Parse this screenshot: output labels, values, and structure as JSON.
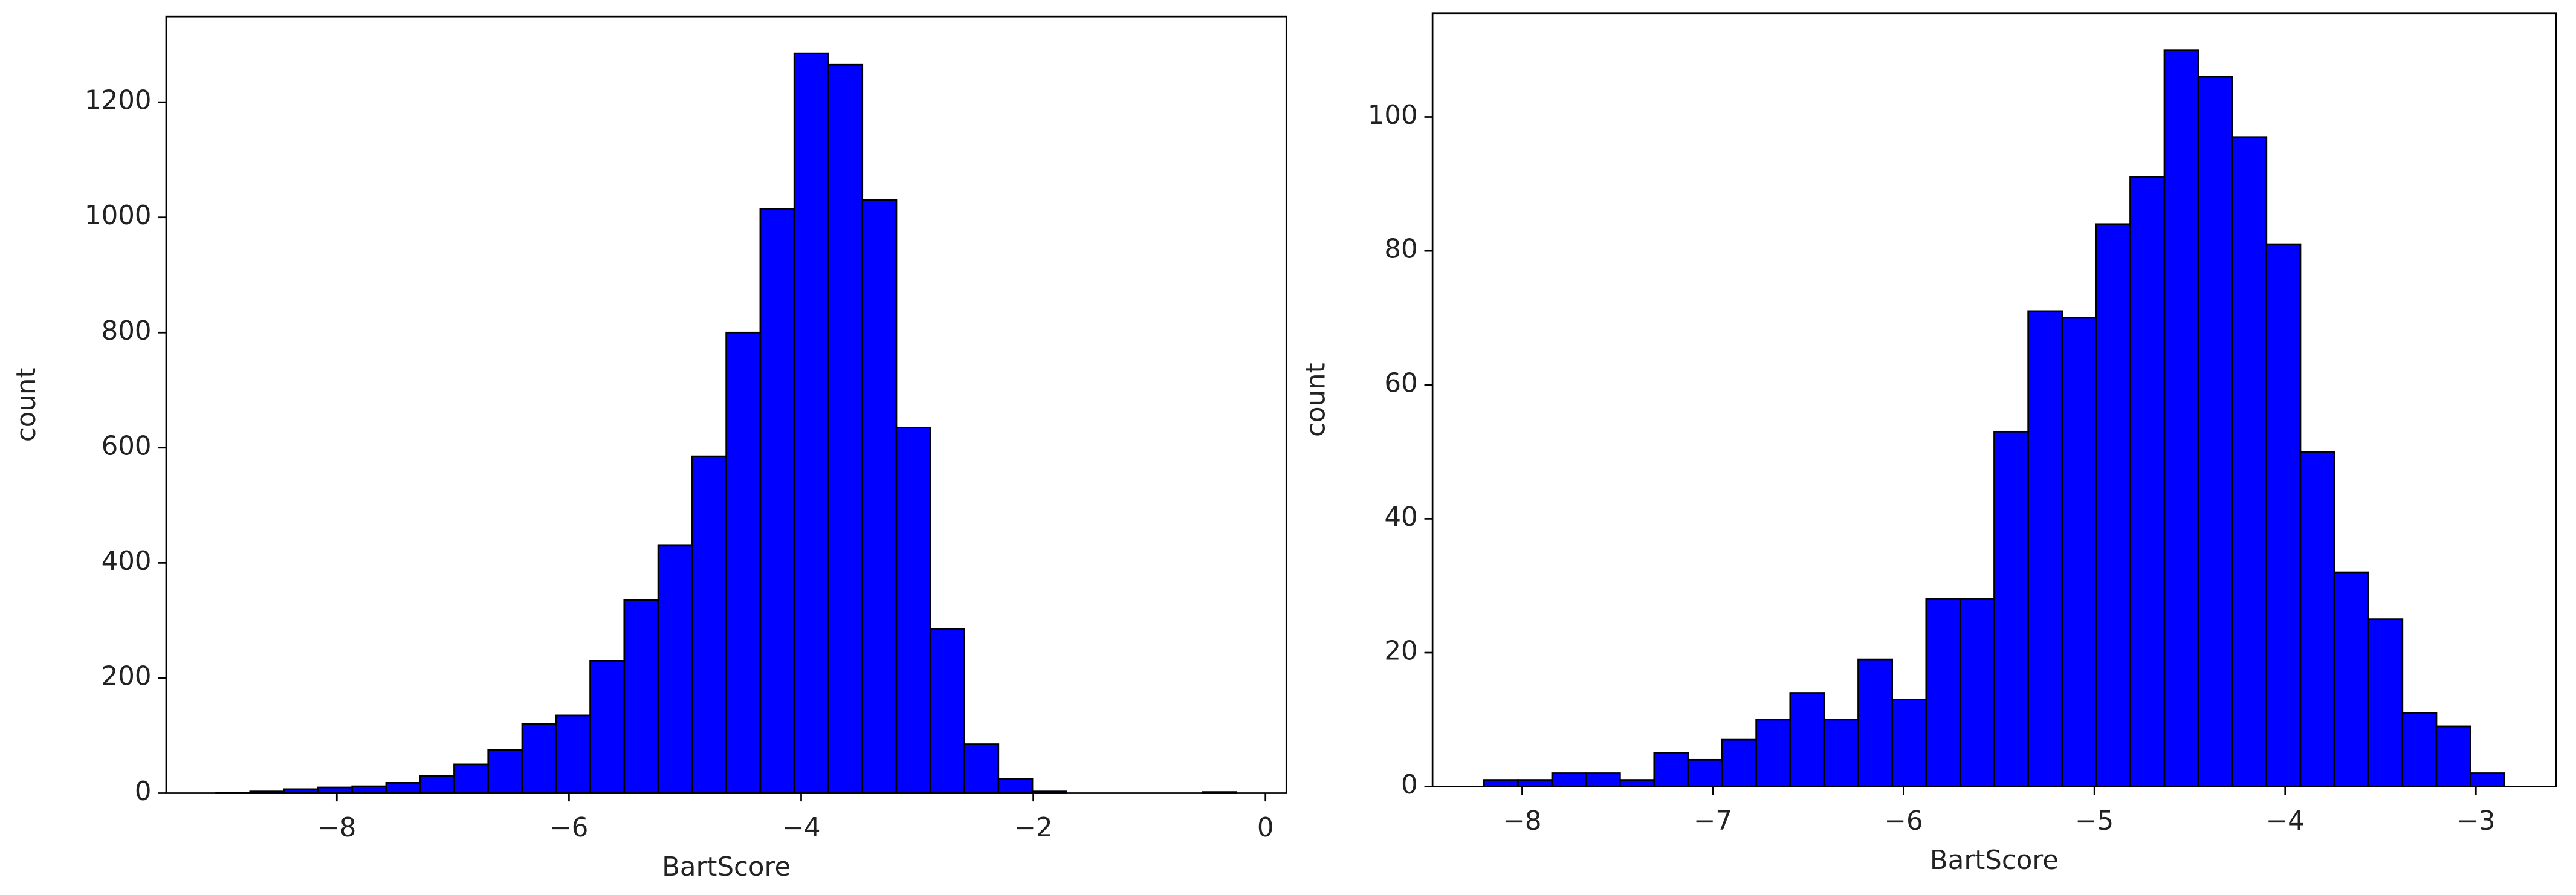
{
  "chart_data": [
    {
      "type": "histogram",
      "xlabel": "BartScore",
      "ylabel": "count",
      "color": "#0000ff",
      "bins": [
        -9.04,
        -8.747,
        -8.454,
        -8.161,
        -7.868,
        -7.575,
        -7.282,
        -6.989,
        -6.696,
        -6.403,
        -6.11,
        -5.817,
        -5.524,
        -5.231,
        -4.938,
        -4.645,
        -4.352,
        -4.059,
        -3.766,
        -3.473,
        -3.18,
        -2.887,
        -2.594,
        -2.301,
        -2.008,
        -1.715,
        -1.422,
        -1.129,
        -0.836,
        -0.543,
        -0.25
      ],
      "values": [
        1,
        3,
        7,
        10,
        12,
        18,
        30,
        50,
        75,
        120,
        135,
        230,
        335,
        430,
        585,
        800,
        1015,
        1285,
        1265,
        1030,
        635,
        285,
        85,
        25,
        3,
        0,
        0,
        0,
        0,
        2
      ],
      "xlim": [
        -9.47,
        0.18
      ],
      "ylim": [
        0,
        1349
      ],
      "xticks": [
        {
          "value": -8,
          "label": "−8"
        },
        {
          "value": -6,
          "label": "−6"
        },
        {
          "value": -4,
          "label": "−4"
        },
        {
          "value": -2,
          "label": "−2"
        },
        0
      ],
      "yticks": [
        0,
        200,
        400,
        600,
        800,
        1000,
        1200
      ]
    },
    {
      "type": "histogram",
      "xlabel": "BartScore",
      "ylabel": "count",
      "color": "#0000ff",
      "bins": [
        -8.2,
        -8.022,
        -7.843,
        -7.665,
        -7.487,
        -7.308,
        -7.13,
        -6.952,
        -6.773,
        -6.595,
        -6.417,
        -6.238,
        -6.06,
        -5.882,
        -5.703,
        -5.525,
        -5.347,
        -5.168,
        -4.99,
        -4.812,
        -4.633,
        -4.455,
        -4.277,
        -4.098,
        -3.92,
        -3.742,
        -3.563,
        -3.385,
        -3.207,
        -3.028,
        -2.85
      ],
      "values": [
        1,
        1,
        2,
        2,
        1,
        5,
        4,
        7,
        10,
        14,
        10,
        19,
        13,
        28,
        28,
        53,
        71,
        70,
        84,
        91,
        110,
        106,
        97,
        81,
        50,
        32,
        25,
        11,
        9,
        2
      ],
      "xlim": [
        -8.47,
        -2.58
      ],
      "ylim": [
        0,
        115.5
      ],
      "xticks": [
        {
          "value": -8,
          "label": "−8"
        },
        {
          "value": -7,
          "label": "−7"
        },
        {
          "value": -6,
          "label": "−6"
        },
        {
          "value": -5,
          "label": "−5"
        },
        {
          "value": -4,
          "label": "−4"
        },
        {
          "value": -3,
          "label": "−3"
        }
      ],
      "yticks": [
        0,
        20,
        40,
        60,
        80,
        100
      ]
    }
  ]
}
